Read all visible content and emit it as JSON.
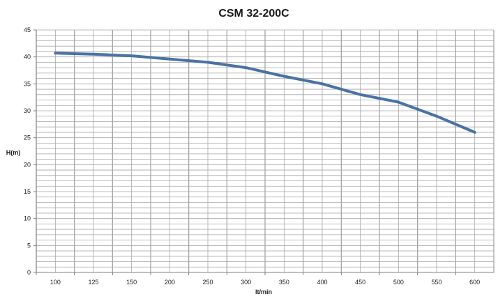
{
  "chart_data": {
    "type": "line",
    "title": "CSM 32-200C",
    "xlabel": "lt/min",
    "ylabel": "H(m)",
    "xlim": [
      87.5,
      612.5
    ],
    "ylim": [
      0,
      45
    ],
    "x_ticks": [
      100,
      125,
      150,
      200,
      250,
      300,
      350,
      400,
      450,
      500,
      550,
      600
    ],
    "y_ticks": [
      0,
      5,
      10,
      15,
      20,
      25,
      30,
      35,
      40,
      45
    ],
    "grid": true,
    "legend": "none",
    "series": [
      {
        "x": [
          100,
          125,
          150,
          200,
          250,
          300,
          350,
          400,
          450,
          500,
          550,
          600
        ],
        "y": [
          40.7,
          40.5,
          40.2,
          39.6,
          39.0,
          38.0,
          36.4,
          35.0,
          33.0,
          31.6,
          29.0,
          26.0
        ]
      }
    ],
    "colors": {
      "line": "#4a72a4",
      "grid": "#a6a6a6",
      "axis": "#808080",
      "background": "#ffffff"
    }
  }
}
